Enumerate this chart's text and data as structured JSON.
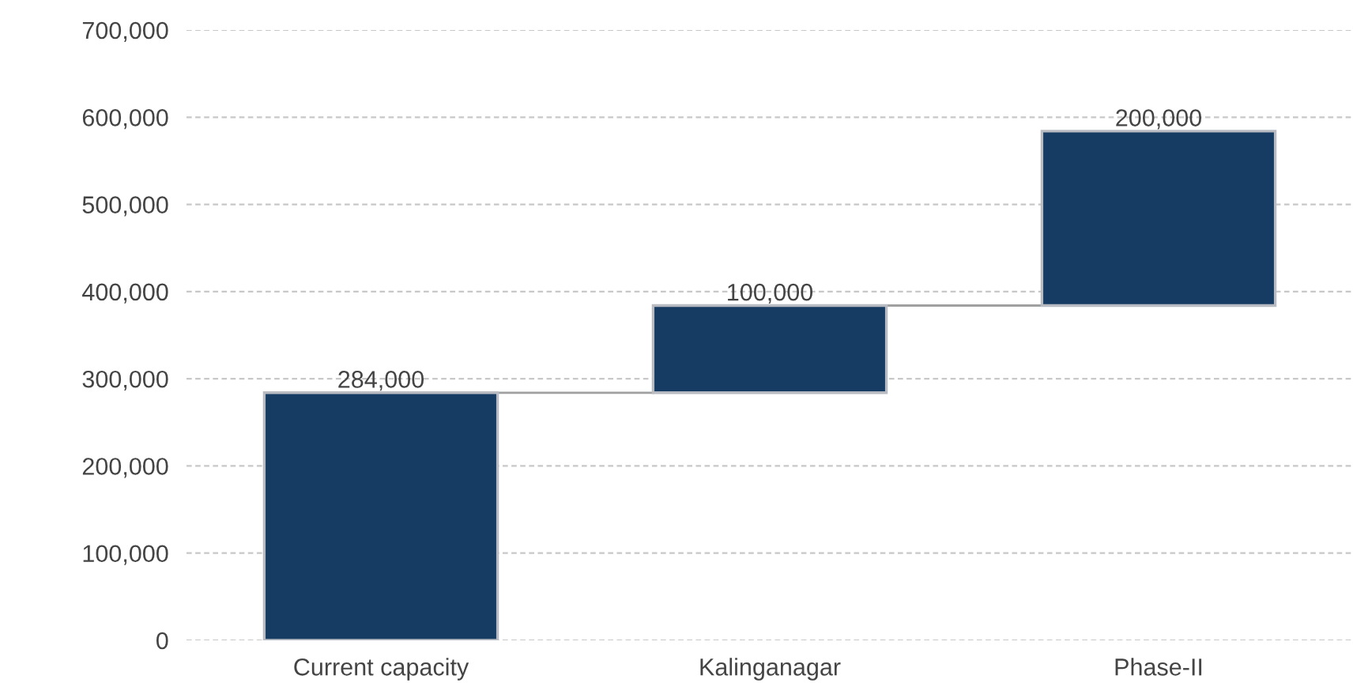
{
  "chart_data": {
    "type": "bar",
    "categories": [
      "Current capacity",
      "Kalinganagar",
      "Phase-II"
    ],
    "values": [
      284000,
      100000,
      200000
    ],
    "base": [
      0,
      284000,
      384000
    ],
    "color": "#173c63",
    "value_labels": [
      "284,000",
      "100,000",
      "200,000"
    ],
    "ylim": [
      0,
      700000
    ],
    "yticks": [
      {
        "value": 0,
        "label": "0"
      },
      {
        "value": 100000,
        "label": "100,000"
      },
      {
        "value": 200000,
        "label": "200,000"
      },
      {
        "value": 300000,
        "label": "300,000"
      },
      {
        "value": 400000,
        "label": "400,000"
      },
      {
        "value": 500000,
        "label": "500,000"
      },
      {
        "value": 600000,
        "label": "600,000"
      },
      {
        "value": 700000,
        "label": "700,000"
      }
    ],
    "grid": "y"
  }
}
